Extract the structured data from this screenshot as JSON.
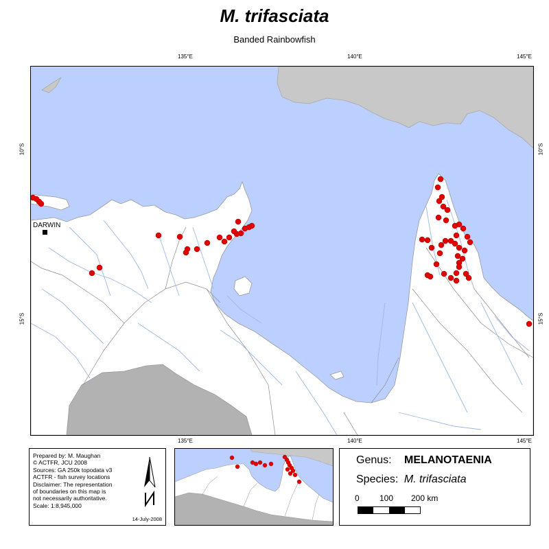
{
  "title": "M. trifasciata",
  "subtitle": "Banded Rainbowfish",
  "graticule": {
    "top": [
      "135°E",
      "140°E",
      "145°E"
    ],
    "bottom": [
      "135°E",
      "140°E",
      "145°E"
    ],
    "left": [
      "10°S",
      "15°S"
    ],
    "right": [
      "10°S",
      "15°S"
    ]
  },
  "city": "DARWIN",
  "credits": {
    "lines": [
      "Prepared by: M. Maughan",
      "© ACTFR, JCU 2008",
      "Sources: GA 250k topodata v3",
      "ACTFR - fish survey locations",
      "Disclaimer: The representation",
      "of boundaries on this map is",
      "not necessarily authoritative.",
      "Scale: 1:8,945,000"
    ],
    "date": "14-July-2008"
  },
  "legend": {
    "genus_label": "Genus:",
    "genus": "MELANOTAENIA",
    "species_label": "Species:",
    "species": "M. trifasciata",
    "scale_labels": [
      "0",
      "100",
      "200 km"
    ]
  },
  "colors": {
    "water": "#bcd0ff",
    "land": "#ffffff",
    "other_land": "#c8c8c8",
    "outside_region": "#b2b2b2",
    "rivers": "#9cb8e6",
    "boundaries": "#8c8c8c",
    "records": "#e00000"
  }
}
